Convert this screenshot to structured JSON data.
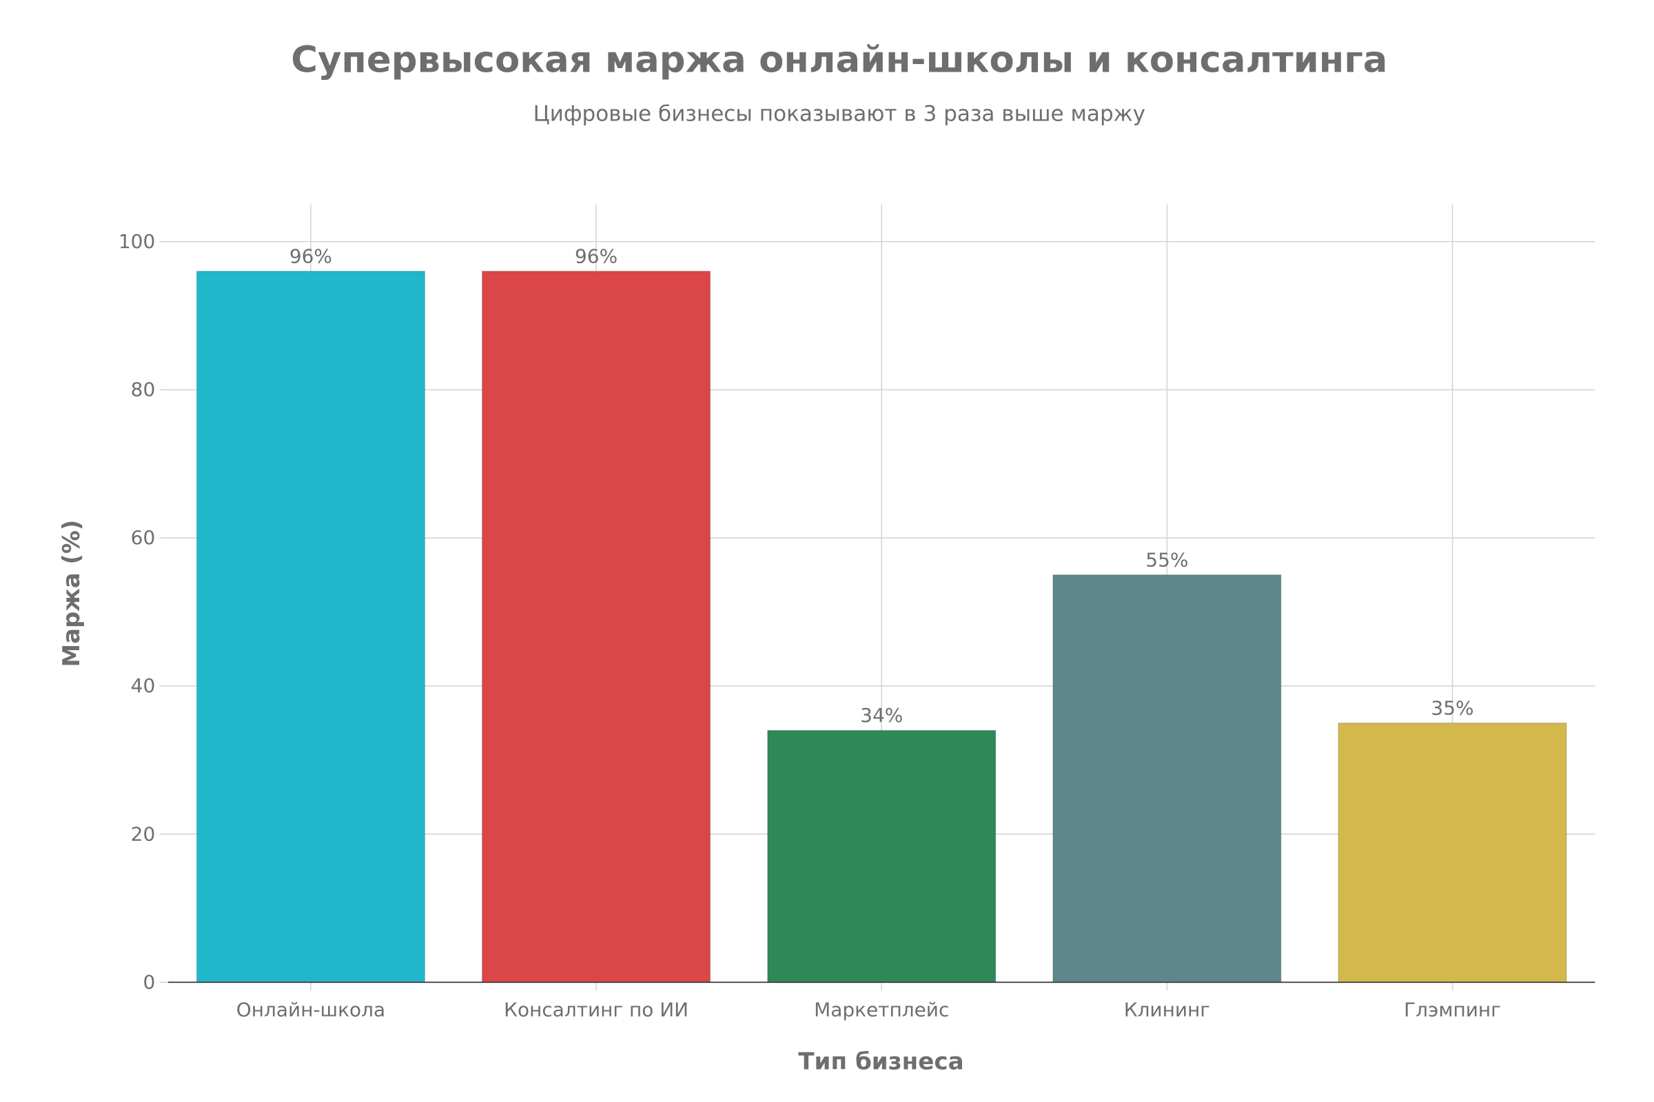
{
  "chart_data": {
    "type": "bar",
    "title": "Супервысокая маржа онлайн-школы и консалтинга",
    "subtitle": "Цифровые бизнесы показывают в 3 раза выше маржу",
    "xlabel": "Тип бизнеса",
    "ylabel": "Маржа (%)",
    "categories": [
      "Онлайн-школа",
      "Консалтинг по ИИ",
      "Маркетплейс",
      "Клининг",
      "Глэмпинг"
    ],
    "values": [
      96,
      96,
      34,
      55,
      35
    ],
    "data_labels": [
      "96%",
      "96%",
      "34%",
      "55%",
      "35%"
    ],
    "colors": [
      "#21b7cb",
      "#db4647",
      "#2e8957",
      "#5d878d",
      "#d3b94c"
    ],
    "ylim": [
      0,
      105
    ],
    "yticks": [
      0,
      20,
      40,
      60,
      80,
      100
    ],
    "grid": true,
    "legend": "none"
  }
}
